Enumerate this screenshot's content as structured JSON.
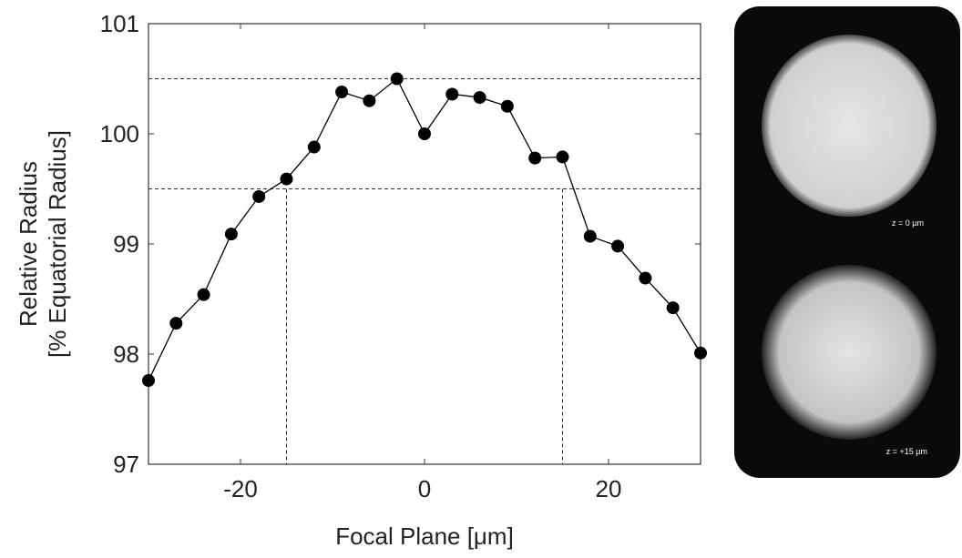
{
  "chart_data": {
    "type": "line",
    "xlabel": "Focal Plane [μm]",
    "ylabel": [
      "Relative Radius",
      "[% Equatorial Radius]"
    ],
    "x": [
      -30,
      -27,
      -24,
      -21,
      -18,
      -15,
      -12,
      -9,
      -6,
      -3,
      0,
      3,
      6,
      9,
      12,
      15,
      18,
      21,
      24,
      27,
      30
    ],
    "values": [
      97.76,
      98.28,
      98.54,
      99.09,
      99.43,
      99.59,
      99.88,
      100.38,
      100.3,
      100.5,
      100.0,
      100.36,
      100.33,
      100.25,
      99.78,
      99.79,
      99.07,
      98.98,
      98.69,
      98.42,
      98.01
    ],
    "color": "#000000",
    "xlim": [
      -30,
      30
    ],
    "xticks": [
      -20,
      0,
      20
    ],
    "ylim": [
      97,
      101
    ],
    "yticks": [
      97,
      98,
      99,
      100,
      101
    ],
    "hlines": [
      100.5,
      99.5
    ],
    "vlines": [
      -15,
      15
    ],
    "vline_base": 99.5
  },
  "images": [
    {
      "label": "z = 0 µm"
    },
    {
      "label": "z = +15 µm"
    }
  ]
}
